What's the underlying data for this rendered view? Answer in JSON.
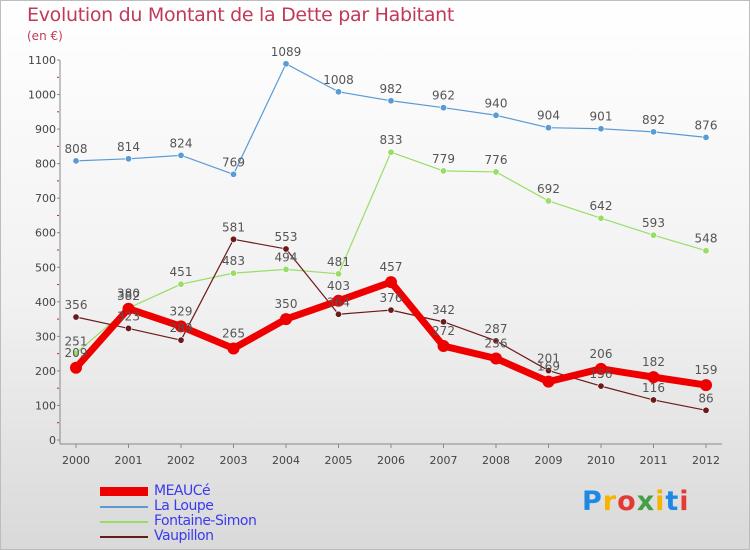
{
  "title": "Evolution du Montant de la Dette par Habitant",
  "unit": "(en €)",
  "logo_text": "Proxiti",
  "chart_data": {
    "type": "line",
    "x": [
      "2000",
      "2001",
      "2002",
      "2003",
      "2004",
      "2005",
      "2006",
      "2007",
      "2008",
      "2009",
      "2010",
      "2011",
      "2012"
    ],
    "ylim": [
      0,
      1100
    ],
    "yticks": [
      0,
      100,
      200,
      300,
      400,
      500,
      600,
      700,
      800,
      900,
      1000,
      1100
    ],
    "grid": false,
    "legend_position": "bottom-left",
    "series": [
      {
        "name": "MEAUCé",
        "color": "#ee0000",
        "values": [
          209,
          380,
          329,
          265,
          350,
          403,
          457,
          272,
          236,
          169,
          206,
          182,
          159
        ]
      },
      {
        "name": "La Loupe",
        "color": "#5b9bd5",
        "values": [
          808,
          814,
          824,
          769,
          1089,
          1008,
          982,
          962,
          940,
          904,
          901,
          892,
          876
        ]
      },
      {
        "name": "Fontaine-Simon",
        "color": "#99dd66",
        "values": [
          251,
          382,
          451,
          483,
          494,
          481,
          833,
          779,
          776,
          692,
          642,
          593,
          548
        ]
      },
      {
        "name": "Vaupillon",
        "color": "#6b1a1a",
        "values": [
          356,
          323,
          289,
          581,
          553,
          364,
          376,
          342,
          287,
          201,
          156,
          116,
          86
        ]
      }
    ]
  }
}
